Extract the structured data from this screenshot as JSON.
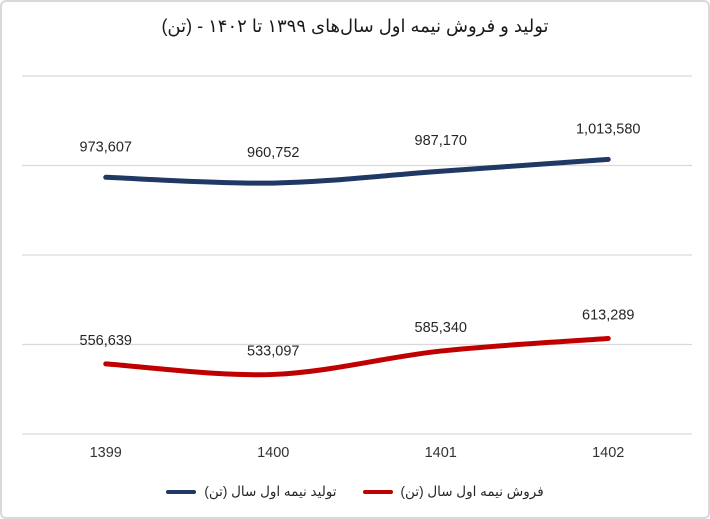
{
  "title": "تولید و فروش نیمه اول سال‌های ۱۳۹۹ تا ۱۴۰۲ - (تن)",
  "chart_data": {
    "type": "line",
    "categories": [
      "1399",
      "1400",
      "1401",
      "1402"
    ],
    "series": [
      {
        "name": "تولید نیمه اول سال (تن)",
        "color": "#1f3864",
        "values": [
          973607,
          960752,
          987170,
          1013580
        ],
        "data_labels": [
          "973,607",
          "960,752",
          "987,170",
          "1,013,580"
        ]
      },
      {
        "name": "فروش نیمه اول سال (تن)",
        "color": "#c00000",
        "values": [
          556639,
          533097,
          585340,
          613289
        ],
        "data_labels": [
          "556,639",
          "533,097",
          "585,340",
          "613,289"
        ]
      }
    ],
    "ylim": [
      400000,
      1200000
    ],
    "grid_step": 200000,
    "grid": true,
    "gridline_color": "#d9d9d9",
    "label_color": "#262626",
    "axis_label_color": "#333333",
    "legend_position": "bottom",
    "xlabel": "",
    "ylabel": ""
  }
}
